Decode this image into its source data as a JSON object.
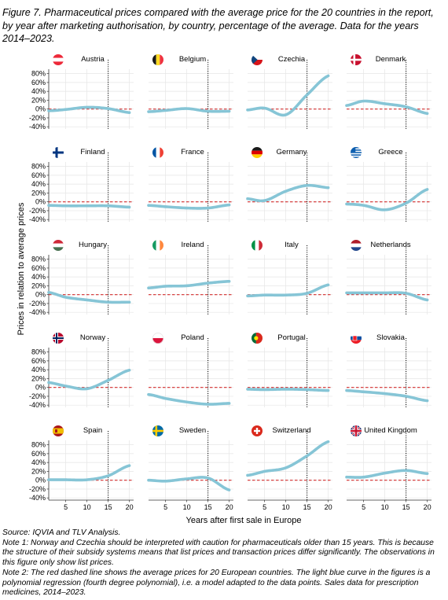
{
  "title": "Figure 7. Pharmaceutical prices compared with the average price for the 20 countries in the report, by year after marketing authorisation, by country, percentage of the average. Data for the years 2014–2023.",
  "notes": {
    "source": "Source: IQVIA and TLV Analysis.",
    "note1": "Note 1: Norway and Czechia should be interpreted with caution for pharmaceuticals older than 15 years. This is because the structure of their subsidy systems means that list prices and transaction prices differ significantly. The observations in this figure only show list prices.",
    "note2": "Note 2: The red dashed line shows the average prices for 20 European countries. The light blue curve in the figures is a polynomial regression (fourth degree polynomial), i.e. a model adapted to the data points. Sales data for prescription medicines, 2014–2023."
  },
  "chart_data": {
    "type": "line",
    "layout": "small-multiples 5x4",
    "xlabel": "Years after first sale in Europe",
    "ylabel": "Prices in relation to average prices",
    "x_ticks": [
      5,
      10,
      15,
      20
    ],
    "xlim": [
      1,
      21
    ],
    "y_ticks": [
      -40,
      -20,
      0,
      20,
      40,
      60,
      80
    ],
    "y_tick_labels": [
      "-40%",
      "-20%",
      "0%",
      "20%",
      "40%",
      "60%",
      "80%"
    ],
    "ylim": [
      -45,
      90
    ],
    "reference_line": {
      "y": 0,
      "style": "red dashed"
    },
    "vertical_marker": {
      "x": 15,
      "style": "black dotted"
    },
    "colors": {
      "curve": "#86c5d6",
      "reference": "#d22d2d",
      "marker": "#000000"
    },
    "x": [
      1,
      5,
      10,
      15,
      20
    ],
    "panels": [
      {
        "country": "Austria",
        "flag": "AT",
        "values": [
          -4,
          -1,
          4,
          1,
          -8
        ]
      },
      {
        "country": "Belgium",
        "flag": "BE",
        "values": [
          -6,
          -3,
          1,
          -5,
          -5
        ]
      },
      {
        "country": "Czechia",
        "flag": "CZ",
        "values": [
          -2,
          2,
          -13,
          32,
          75
        ]
      },
      {
        "country": "Denmark",
        "flag": "DK",
        "values": [
          8,
          18,
          12,
          5,
          -10
        ]
      },
      {
        "country": "Finland",
        "flag": "FI",
        "values": [
          -8,
          -9,
          -9,
          -9,
          -12
        ]
      },
      {
        "country": "France",
        "flag": "FR",
        "values": [
          -8,
          -11,
          -14,
          -14,
          -7
        ]
      },
      {
        "country": "Germany",
        "flag": "DE",
        "values": [
          7,
          3,
          24,
          37,
          32
        ]
      },
      {
        "country": "Greece",
        "flag": "GR",
        "values": [
          -5,
          -8,
          -18,
          -3,
          28
        ]
      },
      {
        "country": "Hungary",
        "flag": "HU",
        "values": [
          5,
          -6,
          -12,
          -17,
          -17
        ]
      },
      {
        "country": "Ireland",
        "flag": "IE",
        "values": [
          15,
          19,
          20,
          26,
          30
        ]
      },
      {
        "country": "Italy",
        "flag": "IT",
        "values": [
          -3,
          -1,
          -1,
          3,
          22
        ]
      },
      {
        "country": "Netherlands",
        "flag": "NL",
        "values": [
          4,
          4,
          4,
          3,
          -12
        ]
      },
      {
        "country": "Norway",
        "flag": "NO",
        "values": [
          11,
          3,
          -3,
          16,
          39
        ]
      },
      {
        "country": "Poland",
        "flag": "PL",
        "values": [
          -16,
          -25,
          -33,
          -38,
          -36
        ]
      },
      {
        "country": "Portugal",
        "flag": "PT",
        "values": [
          -4,
          -5,
          -4,
          -5,
          -7
        ]
      },
      {
        "country": "Slovakia",
        "flag": "SK",
        "values": [
          -7,
          -10,
          -14,
          -20,
          -30
        ]
      },
      {
        "country": "Spain",
        "flag": "ES",
        "values": [
          1,
          1,
          1,
          10,
          33
        ]
      },
      {
        "country": "Sweden",
        "flag": "SE",
        "values": [
          0,
          -2,
          3,
          5,
          -22
        ]
      },
      {
        "country": "Switzerland",
        "flag": "CH",
        "values": [
          11,
          20,
          28,
          55,
          87
        ]
      },
      {
        "country": "United Kingdom",
        "flag": "GB",
        "values": [
          7,
          7,
          16,
          22,
          15
        ]
      }
    ]
  }
}
